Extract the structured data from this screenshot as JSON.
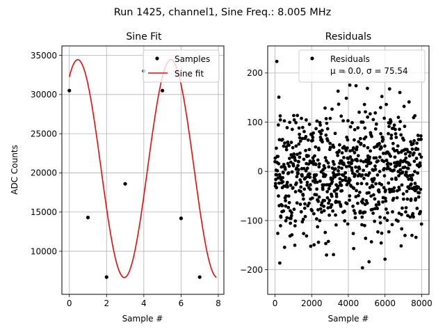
{
  "figure": {
    "suptitle": "Run 1425, channel1, Sine Freq.: 8.005 MHz"
  },
  "chart_data": [
    {
      "type": "line",
      "title": "Sine Fit",
      "xlabel": "Sample #",
      "ylabel": "ADC Counts",
      "xlim": [
        -0.4,
        8.3
      ],
      "ylim": [
        4500,
        36200
      ],
      "xticks": [
        0,
        2,
        4,
        6,
        8
      ],
      "yticks": [
        10000,
        15000,
        20000,
        25000,
        30000,
        35000
      ],
      "grid": true,
      "legend_position": "top-right",
      "sine_fit": {
        "name": "Sine fit",
        "color": "#ff0000",
        "offset": 20550,
        "amplitude": 13900,
        "cycles_per_sample": 0.2001,
        "phase_rad": 1.0,
        "x_range": [
          0,
          7.9
        ]
      },
      "series": [
        {
          "name": "Samples",
          "color": "#000000",
          "x": [
            0,
            1,
            2,
            3,
            4,
            5,
            6,
            7
          ],
          "y": [
            30500,
            14300,
            6700,
            18600,
            33000,
            30500,
            14200,
            6700
          ]
        }
      ]
    },
    {
      "type": "scatter",
      "title": "Residuals",
      "xlabel": "Sample #",
      "ylabel": "",
      "xlim": [
        -400,
        8400
      ],
      "ylim": [
        -250,
        255
      ],
      "xticks": [
        0,
        2000,
        4000,
        6000,
        8000
      ],
      "yticks": [
        -200,
        -100,
        0,
        100,
        200
      ],
      "grid": true,
      "legend_position": "top-right",
      "series": [
        {
          "name": "Residuals",
          "color": "#000000",
          "n_points": 8000,
          "mean": 0.0,
          "std": 75.54,
          "min": -226,
          "max": 228
        }
      ],
      "annotation": "μ = 0.0, σ = 75.54"
    }
  ]
}
